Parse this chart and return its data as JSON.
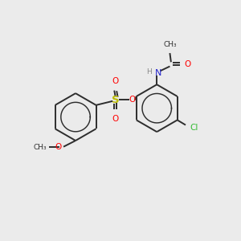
{
  "bg_color": "#ebebeb",
  "bond_color": "#2d2d2d",
  "bond_width": 1.4,
  "colors": {
    "C": "#2d2d2d",
    "O": "#ff0000",
    "N": "#2222cc",
    "S": "#bbbb00",
    "Cl": "#33bb33",
    "H": "#888888"
  },
  "font_size": 7.5,
  "ring_inner_scale": 0.62
}
